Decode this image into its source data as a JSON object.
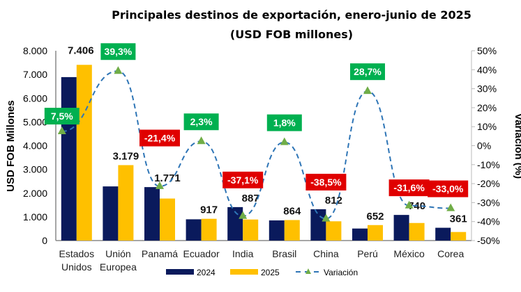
{
  "chart_data": {
    "type": "bar",
    "title": "Principales destinos de exportación, enero-junio de 2025",
    "subtitle": "(USD FOB millones)",
    "ylabel": "USD FOB Millones",
    "y2label": "Variación (%)",
    "ylim": [
      0,
      8000
    ],
    "y2lim": [
      -50,
      50
    ],
    "yticks": [
      "0",
      "1.000",
      "2.000",
      "3.000",
      "4.000",
      "5.000",
      "6.000",
      "7.000",
      "8.000"
    ],
    "y2ticks": [
      "-50%",
      "-40%",
      "-30%",
      "-20%",
      "-10%",
      "0%",
      "10%",
      "20%",
      "30%",
      "40%",
      "50%"
    ],
    "categories": [
      "Estados Unidos",
      "Unión Europea",
      "Panamá",
      "Ecuador",
      "India",
      "Brasil",
      "China",
      "Perú",
      "México",
      "Corea"
    ],
    "series": [
      {
        "name": "2024",
        "type": "bar",
        "color": "#0a1a5c",
        "values": [
          6889,
          2282,
          2253,
          896,
          1410,
          849,
          1320,
          507,
          1080,
          539
        ]
      },
      {
        "name": "2025",
        "type": "bar",
        "color": "#ffc000",
        "values": [
          7406,
          3179,
          1771,
          917,
          887,
          864,
          812,
          652,
          740,
          361
        ],
        "labels": [
          "7.406",
          "3.179",
          "1.771",
          "917",
          "887",
          "864",
          "812",
          "652",
          "740",
          "361"
        ]
      },
      {
        "name": "Variación",
        "type": "line",
        "axis": "right",
        "color": "#2e75b6",
        "marker_color": "#70ad47",
        "values": [
          7.5,
          39.3,
          -21.4,
          2.3,
          -37.1,
          1.8,
          -38.5,
          28.7,
          -31.6,
          -33.0
        ],
        "labels": [
          "7,5%",
          "39,3%",
          "-21,4%",
          "2,3%",
          "-37,1%",
          "1,8%",
          "-38,5%",
          "28,7%",
          "-31,6%",
          "-33,0%"
        ]
      }
    ],
    "positive_label_color": "#00b050",
    "negative_label_color": "#e00000",
    "legend_position": "bottom",
    "grid": false
  }
}
